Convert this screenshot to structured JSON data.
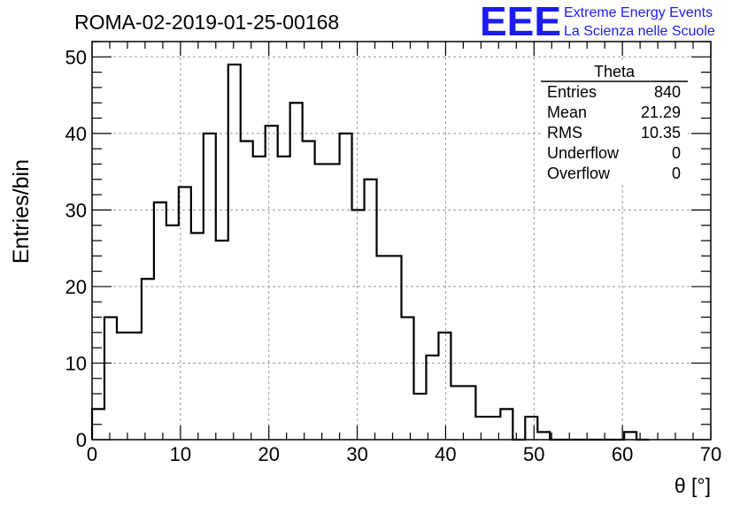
{
  "header": {
    "run_title": "ROMA-02-2019-01-25-00168",
    "logo_text": "EEE",
    "project_line1": "Extreme Energy Events",
    "project_line2": "La Scienza nelle Scuole",
    "logo_color": "#1c1cf0"
  },
  "stats": {
    "title": "Theta",
    "rows": [
      {
        "label": "Entries",
        "value": "840"
      },
      {
        "label": "Mean",
        "value": "21.29"
      },
      {
        "label": "RMS",
        "value": "10.35"
      },
      {
        "label": "Underflow",
        "value": "0"
      },
      {
        "label": "Overflow",
        "value": "0"
      }
    ]
  },
  "chart_data": {
    "type": "bar",
    "histogram": true,
    "title": "ROMA-02-2019-01-25-00168",
    "xlabel": "θ [°]",
    "ylabel": "Entries/bin",
    "bin_width": 1.4,
    "x_start": 0,
    "values": [
      4,
      16,
      14,
      14,
      21,
      31,
      28,
      33,
      27,
      40,
      26,
      49,
      39,
      37,
      41,
      37,
      44,
      39,
      36,
      36,
      40,
      30,
      34,
      24,
      24,
      16,
      6,
      11,
      14,
      7,
      7,
      3,
      3,
      4,
      0,
      3,
      1,
      0,
      0,
      0,
      0,
      0,
      0,
      1,
      0
    ],
    "xlim": [
      0,
      70
    ],
    "ylim": [
      0,
      52
    ],
    "x_ticks": [
      "0",
      "10",
      "20",
      "30",
      "40",
      "50",
      "60",
      "70"
    ],
    "y_ticks": [
      "0",
      "10",
      "20",
      "30",
      "40",
      "50"
    ],
    "grid": true,
    "legend": "top-right"
  }
}
